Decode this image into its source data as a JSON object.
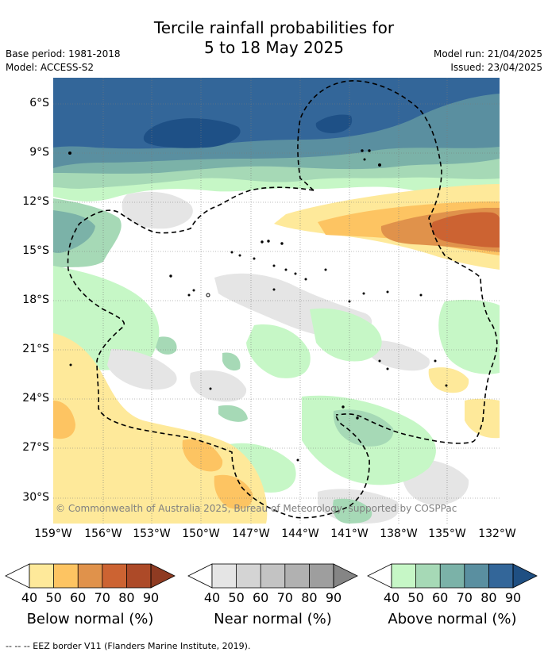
{
  "title": {
    "line1": "Tercile rainfall probabilities for",
    "line2": "5 to 18 May 2025"
  },
  "meta_left": {
    "base_period": "Base period: 1981-2018",
    "model": "Model: ACCESS-S2"
  },
  "meta_right": {
    "model_run": "Model run: 21/04/2025",
    "issued": "Issued: 23/04/2025"
  },
  "map": {
    "lat_ticks": [
      "6°S",
      "9°S",
      "12°S",
      "15°S",
      "18°S",
      "21°S",
      "24°S",
      "27°S",
      "30°S"
    ],
    "lon_ticks": [
      "159°W",
      "156°W",
      "153°W",
      "150°W",
      "147°W",
      "144°W",
      "141°W",
      "138°W",
      "135°W",
      "132°W"
    ],
    "copyright": "© Commonwealth of Australia 2025, Bureau of Meteorology, supported by COSPPac",
    "extent": {
      "lon_west": -159,
      "lon_east": -132,
      "lat_north": -4.5,
      "lat_south": -31.5
    }
  },
  "colorbars": [
    {
      "id": "below",
      "title": "Below normal (%)",
      "ticks": [
        "40",
        "50",
        "60",
        "70",
        "80",
        "90"
      ],
      "colors": [
        "#fee99a",
        "#fdc462",
        "#e0924b",
        "#cc6332",
        "#ad4a28"
      ],
      "tip_color": "#8f3b22"
    },
    {
      "id": "near",
      "title": "Near normal (%)",
      "ticks": [
        "40",
        "50",
        "60",
        "70",
        "80",
        "90"
      ],
      "colors": [
        "#e5e5e5",
        "#d4d4d4",
        "#c3c3c3",
        "#b1b1b1",
        "#9e9e9e"
      ],
      "tip_color": "#858585"
    },
    {
      "id": "above",
      "title": "Above normal (%)",
      "ticks": [
        "40",
        "50",
        "60",
        "70",
        "80",
        "90"
      ],
      "colors": [
        "#c6f7c6",
        "#a6d9b6",
        "#7bb2a8",
        "#5a8fa0",
        "#336699"
      ],
      "tip_color": "#1f4f82"
    }
  ],
  "footnote": "--  --  -- EEZ border V11 (Flanders Marine Institute, 2019)."
}
